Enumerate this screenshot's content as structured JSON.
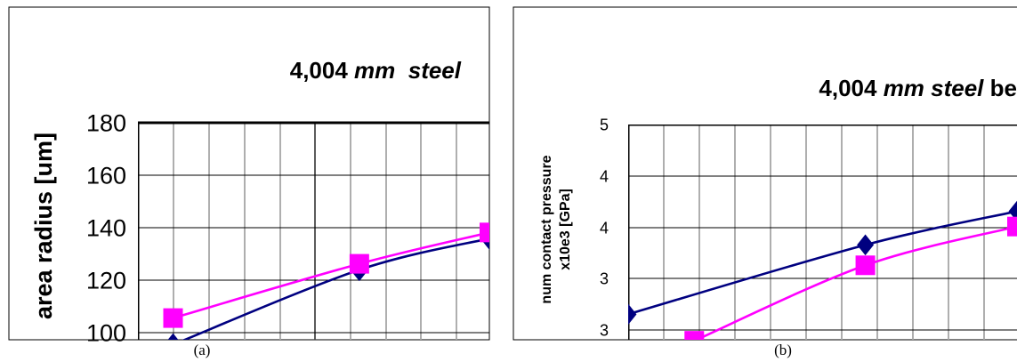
{
  "chart_data": [
    {
      "type": "line",
      "caption": "(a)",
      "title_parts": [
        {
          "text": "4,004 ",
          "italic": false
        },
        {
          "text": "mm  steel",
          "italic": true
        }
      ],
      "ylabel": "area radius [um]",
      "xlabel": "",
      "yticks": [
        "180",
        "160",
        "140",
        "120",
        "100"
      ],
      "ylim": [
        94,
        184
      ],
      "xlim": [
        0,
        10
      ],
      "grid": true,
      "series": [
        {
          "color": "#000080",
          "marker": "diamond",
          "points": [
            [
              1,
              92
            ],
            [
              6.3,
              123
            ],
            [
              10,
              136
            ]
          ]
        },
        {
          "color": "#ff00ff",
          "marker": "square",
          "points": [
            [
              1,
              103
            ],
            [
              6.3,
              125.5
            ],
            [
              10,
              138.5
            ]
          ]
        }
      ]
    },
    {
      "type": "line",
      "caption": "(b)",
      "title_parts": [
        {
          "text": "4,004 ",
          "italic": false
        },
        {
          "text": "mm steel",
          "italic": true
        },
        {
          "text": " be",
          "italic": false
        }
      ],
      "ylabel_lines": [
        "num contact pressure",
        "x10e3 [GPa]"
      ],
      "xlabel": "",
      "yticks": [
        "5",
        "4",
        "4",
        "3",
        "3"
      ],
      "ylim": [
        2.89,
        5
      ],
      "xlim": [
        0,
        10
      ],
      "grid": true,
      "series": [
        {
          "color": "#000080",
          "marker": "diamond",
          "points": [
            [
              0,
              3.14
            ],
            [
              6.1,
              3.82
            ],
            [
              10,
              4.15
            ]
          ]
        },
        {
          "color": "#ff00ff",
          "marker": "square",
          "points": [
            [
              1.7,
              2.88
            ],
            [
              6.1,
              3.62
            ],
            [
              10,
              4.0
            ]
          ]
        }
      ]
    }
  ]
}
